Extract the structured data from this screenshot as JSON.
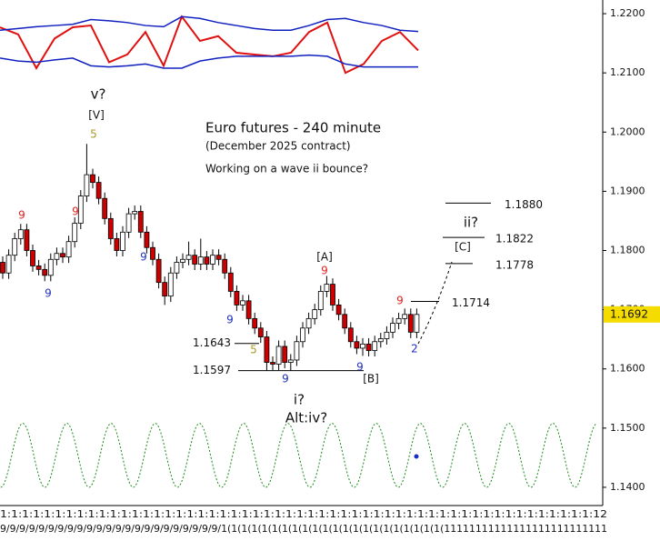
{
  "chart_data": {
    "type": "candlestick",
    "ylim": [
      1.13692,
      1.22231
    ],
    "yticks": [
      {
        "value": 1.22,
        "label": "1.2200"
      },
      {
        "value": 1.21,
        "label": "1.2100"
      },
      {
        "value": 1.2,
        "label": "1.2000"
      },
      {
        "value": 1.19,
        "label": "1.1900"
      },
      {
        "value": 1.18,
        "label": "1.1800"
      },
      {
        "value": 1.17,
        "label": "1.1700"
      },
      {
        "value": 1.16,
        "label": "1.1600"
      },
      {
        "value": 1.15,
        "label": "1.1500"
      },
      {
        "value": 1.14,
        "label": "1.1400"
      }
    ],
    "x_axis_text": [
      "1:1:1:1:1:1:1:1:1:1:1:1:1:1:1:1:1:1:1:1:1:1:1:1:1:1:1:1:1:1:1:1:1:1:1:1:1:1:1:1:1:1:1:1:1:1:1:1:1:1:1:1:1:1:12",
      "9/9/9/9/9/9/9/9/9/9/9/9/9/9/9/9/9/9/9/9/9/9/9/1(1(1(1(1(1(1(1(1(1(1(1(1(1(1(1(1(1(1(1(1(1(11111111111111111111111111"
    ],
    "last_price": {
      "value": 1.1692,
      "label": "1.1692"
    },
    "ohlc": {
      "up_color": "#ffffff",
      "down_color": "#cc0000",
      "open": [
        1.178,
        1.1762,
        1.1792,
        1.182,
        1.1835,
        1.18,
        1.1774,
        1.1768,
        1.1758,
        1.1785,
        1.1795,
        1.1789,
        1.1815,
        1.1846,
        1.1892,
        1.1928,
        1.1915,
        1.1888,
        1.1854,
        1.182,
        1.18,
        1.1831,
        1.1862,
        1.1866,
        1.1831,
        1.1805,
        1.1785,
        1.1746,
        1.1723,
        1.1762,
        1.178,
        1.1785,
        1.1792,
        1.1777,
        1.1789,
        1.1777,
        1.1792,
        1.1785,
        1.1762,
        1.1731,
        1.1708,
        1.1715,
        1.1685,
        1.1669,
        1.1654,
        1.1611,
        1.1608,
        1.1638,
        1.1611,
        1.1615,
        1.1646,
        1.1669,
        1.1685,
        1.17,
        1.1731,
        1.1743,
        1.1708,
        1.1692,
        1.1669,
        1.1646,
        1.1635,
        1.1642,
        1.1631,
        1.1646,
        1.1651,
        1.1662,
        1.1677,
        1.1685,
        1.1692,
        1.1662
      ],
      "high": [
        1.179,
        1.1802,
        1.183,
        1.1845,
        1.1845,
        1.181,
        1.1784,
        1.1778,
        1.1795,
        1.1805,
        1.1805,
        1.1825,
        1.1856,
        1.1902,
        1.198,
        1.1938,
        1.1925,
        1.1898,
        1.1864,
        1.183,
        1.1841,
        1.1872,
        1.1876,
        1.1876,
        1.1841,
        1.1815,
        1.1795,
        1.1756,
        1.1772,
        1.179,
        1.1795,
        1.1815,
        1.1802,
        1.182,
        1.1799,
        1.1802,
        1.1802,
        1.1795,
        1.1772,
        1.1741,
        1.1725,
        1.1725,
        1.1695,
        1.1679,
        1.1664,
        1.1621,
        1.1648,
        1.1648,
        1.1625,
        1.1656,
        1.1679,
        1.1695,
        1.171,
        1.1741,
        1.1757,
        1.1753,
        1.1718,
        1.1702,
        1.1679,
        1.1656,
        1.1652,
        1.1652,
        1.1656,
        1.1661,
        1.1672,
        1.1687,
        1.1695,
        1.1702,
        1.1702,
        1.1702
      ],
      "low": [
        1.1752,
        1.1752,
        1.1782,
        1.181,
        1.179,
        1.1764,
        1.1758,
        1.1748,
        1.1748,
        1.1775,
        1.1779,
        1.1779,
        1.1805,
        1.1836,
        1.1882,
        1.1905,
        1.1878,
        1.1844,
        1.181,
        1.179,
        1.179,
        1.1821,
        1.1852,
        1.1821,
        1.1795,
        1.1775,
        1.1736,
        1.1708,
        1.1713,
        1.1752,
        1.177,
        1.1775,
        1.1767,
        1.1767,
        1.1767,
        1.1767,
        1.1775,
        1.1752,
        1.1721,
        1.1698,
        1.1698,
        1.1675,
        1.1659,
        1.1644,
        1.1597,
        1.1598,
        1.1598,
        1.1601,
        1.1597,
        1.1605,
        1.1636,
        1.1659,
        1.1675,
        1.169,
        1.1721,
        1.1698,
        1.1682,
        1.1659,
        1.1636,
        1.1625,
        1.1622,
        1.1621,
        1.1621,
        1.1636,
        1.1641,
        1.1652,
        1.1667,
        1.1675,
        1.1652,
        1.1652
      ],
      "close": [
        1.1762,
        1.1792,
        1.182,
        1.1835,
        1.18,
        1.1774,
        1.1768,
        1.1758,
        1.1785,
        1.1795,
        1.1789,
        1.1815,
        1.1846,
        1.1892,
        1.1928,
        1.1915,
        1.1888,
        1.1854,
        1.182,
        1.18,
        1.1831,
        1.1862,
        1.1866,
        1.1831,
        1.1805,
        1.1785,
        1.1746,
        1.1723,
        1.1762,
        1.178,
        1.1785,
        1.1792,
        1.1777,
        1.1789,
        1.1777,
        1.1792,
        1.1785,
        1.1762,
        1.1731,
        1.1708,
        1.1715,
        1.1685,
        1.1669,
        1.1654,
        1.1611,
        1.1608,
        1.1638,
        1.1611,
        1.1615,
        1.1646,
        1.1669,
        1.1685,
        1.17,
        1.1731,
        1.1743,
        1.1708,
        1.1692,
        1.1669,
        1.1646,
        1.1635,
        1.1642,
        1.1631,
        1.1646,
        1.1651,
        1.1662,
        1.1677,
        1.1685,
        1.1692,
        1.1662,
        1.1692
      ]
    },
    "series": [
      {
        "color": "#e01010",
        "values": [
          1.2177,
          1.2165,
          1.2108,
          1.2158,
          1.2177,
          1.218,
          1.2118,
          1.2131,
          1.2169,
          1.2112,
          1.2195,
          1.2154,
          1.2162,
          1.2134,
          1.2131,
          1.2128,
          1.2134,
          1.2169,
          1.2185,
          1.21,
          1.2115,
          1.2154,
          1.2169,
          1.2138
        ]
      },
      {
        "color": "#1020c0",
        "values": [
          1.2172,
          1.2175,
          1.2178,
          1.218,
          1.2182,
          1.219,
          1.2188,
          1.2185,
          1.218,
          1.2178,
          1.2195,
          1.2192,
          1.2185,
          1.218,
          1.2175,
          1.2172,
          1.2172,
          1.218,
          1.219,
          1.2192,
          1.2185,
          1.218,
          1.2172,
          1.217
        ]
      },
      {
        "color": "#1020c0",
        "values": [
          1.2125,
          1.212,
          1.2118,
          1.2122,
          1.2125,
          1.2112,
          1.211,
          1.2112,
          1.2115,
          1.2108,
          1.2108,
          1.212,
          1.2125,
          1.2128,
          1.2128,
          1.2128,
          1.2128,
          1.213,
          1.2128,
          1.2115,
          1.211,
          1.211,
          1.211,
          1.211
        ]
      }
    ],
    "cycle": {
      "color": "#1a8a1a",
      "values": [
        1.14,
        1.1508,
        1.14,
        1.1508,
        1.14,
        1.1508,
        1.14,
        1.1508,
        1.14,
        1.1508,
        1.14,
        1.1508,
        1.14,
        1.1508,
        1.14,
        1.1508,
        1.14,
        1.1508,
        1.14,
        1.1508,
        1.14,
        1.1508,
        1.14,
        1.1508,
        1.14,
        1.1508,
        1.14,
        1.1508
      ]
    },
    "levels": [
      {
        "value": 1.188,
        "label": "1.1880"
      },
      {
        "value": 1.1822,
        "label": "1.1822"
      },
      {
        "value": 1.1778,
        "label": "1.1778"
      },
      {
        "value": 1.1714,
        "label": "1.1714"
      },
      {
        "value": 1.1643,
        "label": "1.1643"
      },
      {
        "value": 1.1597,
        "label": "1.1597"
      }
    ],
    "annotations": [
      "v?",
      "[V]",
      "5",
      "Euro futures - 240 minute",
      "(December 2025 contract)",
      "Working on a wave ii bounce?",
      "ii?",
      "[C]",
      "[A]",
      "9",
      "9",
      "2",
      "9",
      "[B]",
      "i?",
      "Alt:iv?",
      "5",
      "9",
      "9",
      "9",
      "9",
      "9",
      "9"
    ]
  }
}
